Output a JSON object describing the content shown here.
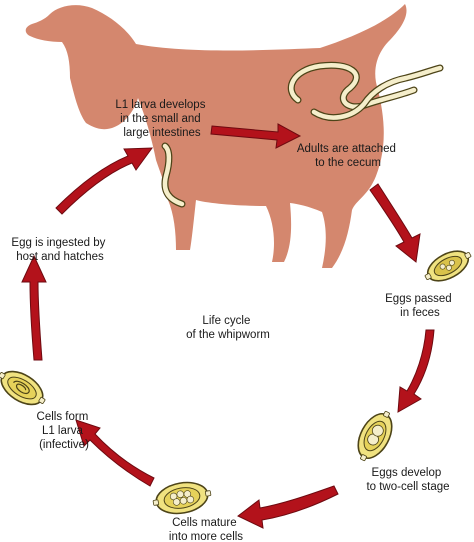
{
  "diagram": {
    "center_title": [
      "Life cycle",
      "of the whipworm"
    ],
    "stages": [
      {
        "id": "larva",
        "lines": [
          "L1 larva develops",
          "in the small and",
          "large intestines"
        ]
      },
      {
        "id": "adults",
        "lines": [
          "Adults are attached",
          "to the cecum"
        ]
      },
      {
        "id": "eggs-passed",
        "lines": [
          "Eggs passed",
          "in feces"
        ]
      },
      {
        "id": "two-cell",
        "lines": [
          "Eggs develop",
          "to two-cell stage"
        ]
      },
      {
        "id": "more-cells",
        "lines": [
          "Cells mature",
          "into more cells"
        ]
      },
      {
        "id": "l1-infective",
        "lines": [
          "Cells form",
          "L1 larva",
          "(infective)"
        ]
      },
      {
        "id": "ingested",
        "lines": [
          "Egg is ingested by",
          "host and hatches"
        ]
      }
    ],
    "colors": {
      "dog": "#d4876e",
      "arrow": "#b3121b",
      "arrow_edge": "#6e0a10",
      "egg_shell": "#f0e280",
      "egg_edge": "#4d4418",
      "worm": "#f5eecb"
    }
  }
}
